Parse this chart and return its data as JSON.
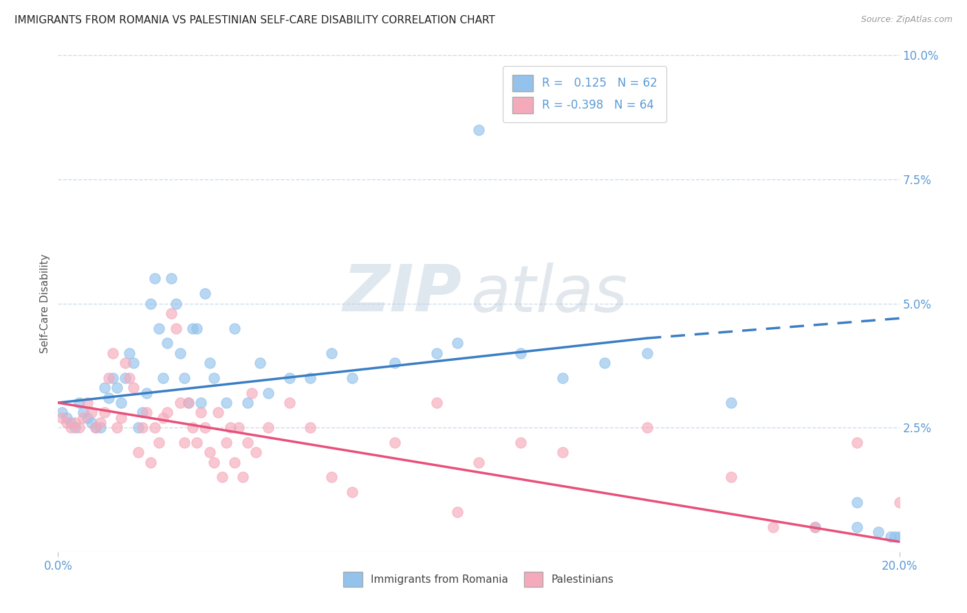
{
  "title": "IMMIGRANTS FROM ROMANIA VS PALESTINIAN SELF-CARE DISABILITY CORRELATION CHART",
  "source": "Source: ZipAtlas.com",
  "ylabel": "Self-Care Disability",
  "xlim": [
    0.0,
    0.2
  ],
  "ylim": [
    0.0,
    0.1
  ],
  "xticks": [
    0.0,
    0.2
  ],
  "xtick_labels": [
    "0.0%",
    "20.0%"
  ],
  "yticks_right": [
    0.025,
    0.05,
    0.075,
    0.1
  ],
  "ytick_labels_right": [
    "2.5%",
    "5.0%",
    "7.5%",
    "10.0%"
  ],
  "blue_color": "#93C2EC",
  "pink_color": "#F5AABB",
  "blue_line_color": "#3A7EC4",
  "pink_line_color": "#E8507A",
  "axis_color": "#5B9BD5",
  "grid_color": "#CCDDEE",
  "background_color": "#FFFFFF",
  "legend_R_blue": "0.125",
  "legend_N_blue": "62",
  "legend_R_pink": "-0.398",
  "legend_N_pink": "64",
  "label_blue": "Immigrants from Romania",
  "label_pink": "Palestinians",
  "watermark_zip": "ZIP",
  "watermark_atlas": "atlas",
  "blue_trend_start_x": 0.0,
  "blue_trend_start_y": 0.03,
  "blue_trend_end_solid_x": 0.14,
  "blue_trend_end_solid_y": 0.043,
  "blue_trend_end_dash_x": 0.2,
  "blue_trend_end_dash_y": 0.047,
  "pink_trend_start_x": 0.0,
  "pink_trend_start_y": 0.03,
  "pink_trend_end_x": 0.2,
  "pink_trend_end_y": 0.002,
  "blue_scatter_x": [
    0.001,
    0.002,
    0.003,
    0.004,
    0.005,
    0.006,
    0.007,
    0.008,
    0.009,
    0.01,
    0.011,
    0.012,
    0.013,
    0.014,
    0.015,
    0.016,
    0.017,
    0.018,
    0.019,
    0.02,
    0.021,
    0.022,
    0.023,
    0.024,
    0.025,
    0.026,
    0.027,
    0.028,
    0.029,
    0.03,
    0.031,
    0.032,
    0.033,
    0.034,
    0.035,
    0.036,
    0.037,
    0.04,
    0.042,
    0.045,
    0.048,
    0.05,
    0.055,
    0.06,
    0.065,
    0.07,
    0.08,
    0.09,
    0.095,
    0.1,
    0.11,
    0.12,
    0.13,
    0.14,
    0.16,
    0.18,
    0.19,
    0.19,
    0.195,
    0.198,
    0.199,
    0.2
  ],
  "blue_scatter_y": [
    0.028,
    0.027,
    0.026,
    0.025,
    0.03,
    0.028,
    0.027,
    0.026,
    0.025,
    0.025,
    0.033,
    0.031,
    0.035,
    0.033,
    0.03,
    0.035,
    0.04,
    0.038,
    0.025,
    0.028,
    0.032,
    0.05,
    0.055,
    0.045,
    0.035,
    0.042,
    0.055,
    0.05,
    0.04,
    0.035,
    0.03,
    0.045,
    0.045,
    0.03,
    0.052,
    0.038,
    0.035,
    0.03,
    0.045,
    0.03,
    0.038,
    0.032,
    0.035,
    0.035,
    0.04,
    0.035,
    0.038,
    0.04,
    0.042,
    0.085,
    0.04,
    0.035,
    0.038,
    0.04,
    0.03,
    0.005,
    0.005,
    0.01,
    0.004,
    0.003,
    0.003,
    0.003
  ],
  "pink_scatter_x": [
    0.001,
    0.002,
    0.003,
    0.004,
    0.005,
    0.006,
    0.007,
    0.008,
    0.009,
    0.01,
    0.011,
    0.012,
    0.013,
    0.014,
    0.015,
    0.016,
    0.017,
    0.018,
    0.019,
    0.02,
    0.021,
    0.022,
    0.023,
    0.024,
    0.025,
    0.026,
    0.027,
    0.028,
    0.029,
    0.03,
    0.031,
    0.032,
    0.033,
    0.034,
    0.035,
    0.036,
    0.037,
    0.038,
    0.039,
    0.04,
    0.041,
    0.042,
    0.043,
    0.044,
    0.045,
    0.046,
    0.047,
    0.05,
    0.055,
    0.06,
    0.065,
    0.07,
    0.08,
    0.09,
    0.095,
    0.1,
    0.11,
    0.12,
    0.14,
    0.16,
    0.17,
    0.18,
    0.19,
    0.2
  ],
  "pink_scatter_y": [
    0.027,
    0.026,
    0.025,
    0.026,
    0.025,
    0.027,
    0.03,
    0.028,
    0.025,
    0.026,
    0.028,
    0.035,
    0.04,
    0.025,
    0.027,
    0.038,
    0.035,
    0.033,
    0.02,
    0.025,
    0.028,
    0.018,
    0.025,
    0.022,
    0.027,
    0.028,
    0.048,
    0.045,
    0.03,
    0.022,
    0.03,
    0.025,
    0.022,
    0.028,
    0.025,
    0.02,
    0.018,
    0.028,
    0.015,
    0.022,
    0.025,
    0.018,
    0.025,
    0.015,
    0.022,
    0.032,
    0.02,
    0.025,
    0.03,
    0.025,
    0.015,
    0.012,
    0.022,
    0.03,
    0.008,
    0.018,
    0.022,
    0.02,
    0.025,
    0.015,
    0.005,
    0.005,
    0.022,
    0.01
  ]
}
